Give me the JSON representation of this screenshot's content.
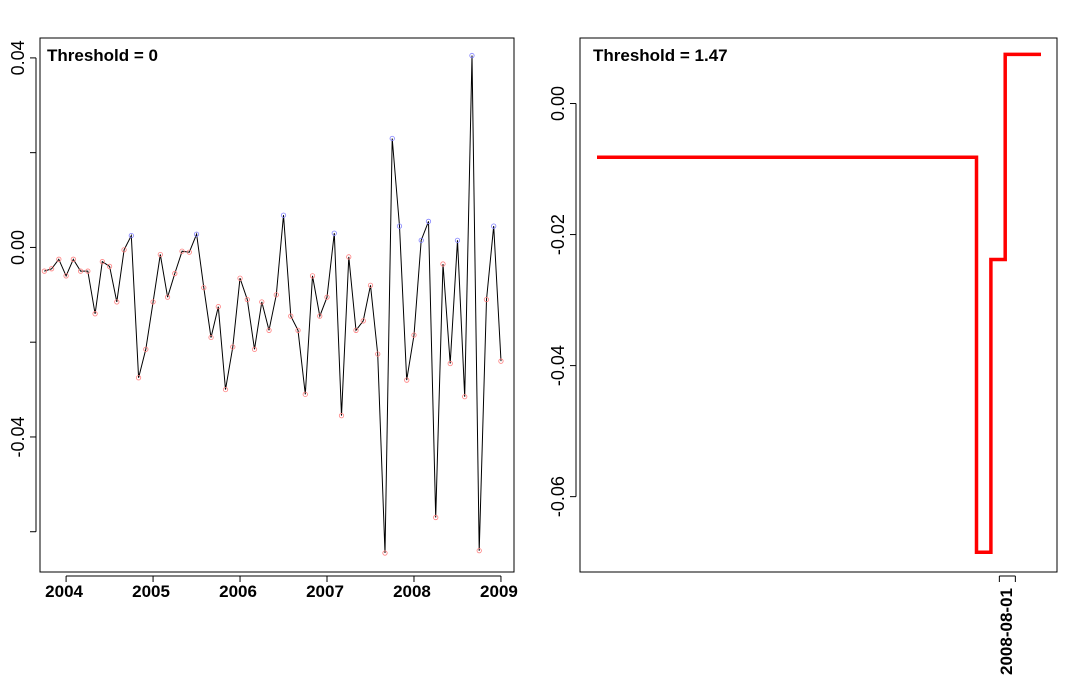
{
  "chart_data": [
    {
      "type": "line",
      "annotation": "Threshold = 0",
      "xlabel": "",
      "ylabel": "",
      "x_ticks": [
        "2004",
        "2005",
        "2006",
        "2007",
        "2008",
        "2009"
      ],
      "x_range": [
        2003.7,
        2009.15
      ],
      "y_ticks": [
        "-0.04",
        "0.00",
        "0.04"
      ],
      "y_tick_values": [
        -0.04,
        0.0,
        0.04
      ],
      "y_minor_ticks": [
        -0.06,
        -0.02,
        0.02
      ],
      "ylim": [
        -0.0685,
        0.0442
      ],
      "point_colors": {
        "below": "#ff8080",
        "above": "#8080ff",
        "line": "#000000"
      },
      "series": [
        {
          "start": [
            2003,
            10
          ],
          "values": [
            -0.005,
            -0.0045,
            -0.0025,
            -0.006,
            -0.0025,
            -0.005,
            -0.005,
            -0.014,
            -0.003,
            -0.004,
            -0.0115,
            -0.0005,
            0.0025,
            -0.0275,
            -0.0215,
            -0.0115,
            -0.0015,
            -0.0105,
            -0.0055,
            -0.0008,
            -0.001,
            0.0028,
            -0.0085,
            -0.019,
            -0.0125,
            -0.03,
            -0.021,
            -0.0065,
            -0.011,
            -0.0215,
            -0.0115,
            -0.0175,
            -0.01,
            0.0068,
            -0.0145,
            -0.0175,
            -0.031,
            -0.006,
            -0.0145,
            -0.0105,
            0.003,
            -0.0355,
            -0.002,
            -0.0175,
            -0.0155,
            -0.008,
            -0.0225,
            -0.0645,
            0.023,
            0.0045,
            -0.028,
            -0.0185,
            0.0015,
            0.0055,
            -0.057,
            -0.0035,
            -0.0245,
            0.0015,
            -0.0315,
            0.0405,
            -0.064,
            -0.011,
            0.0045,
            -0.024
          ]
        }
      ]
    },
    {
      "type": "line",
      "annotation": "Threshold = 1.47",
      "xlabel": "",
      "ylabel": "",
      "x_ticks": [
        "2008-08-01"
      ],
      "y_ticks": [
        "-0.06",
        "-0.04",
        "-0.02",
        "0.00"
      ],
      "y_tick_values": [
        -0.06,
        -0.04,
        -0.02,
        0.0
      ],
      "ylim": [
        -0.0715,
        0.01
      ],
      "line_color": "#ff0000",
      "step": true,
      "series": [
        {
          "points": [
            {
              "x": "2003-10-01",
              "y": -0.0082
            },
            {
              "x": "2008-03-01",
              "y": -0.0082
            },
            {
              "x": "2008-03-01",
              "y": -0.0685
            },
            {
              "x": "2008-05-01",
              "y": -0.0685
            },
            {
              "x": "2008-05-01",
              "y": -0.0238
            },
            {
              "x": "2008-07-01",
              "y": -0.0238
            },
            {
              "x": "2008-07-01",
              "y": 0.0075
            },
            {
              "x": "2008-12-01",
              "y": 0.0075
            }
          ]
        }
      ]
    }
  ]
}
